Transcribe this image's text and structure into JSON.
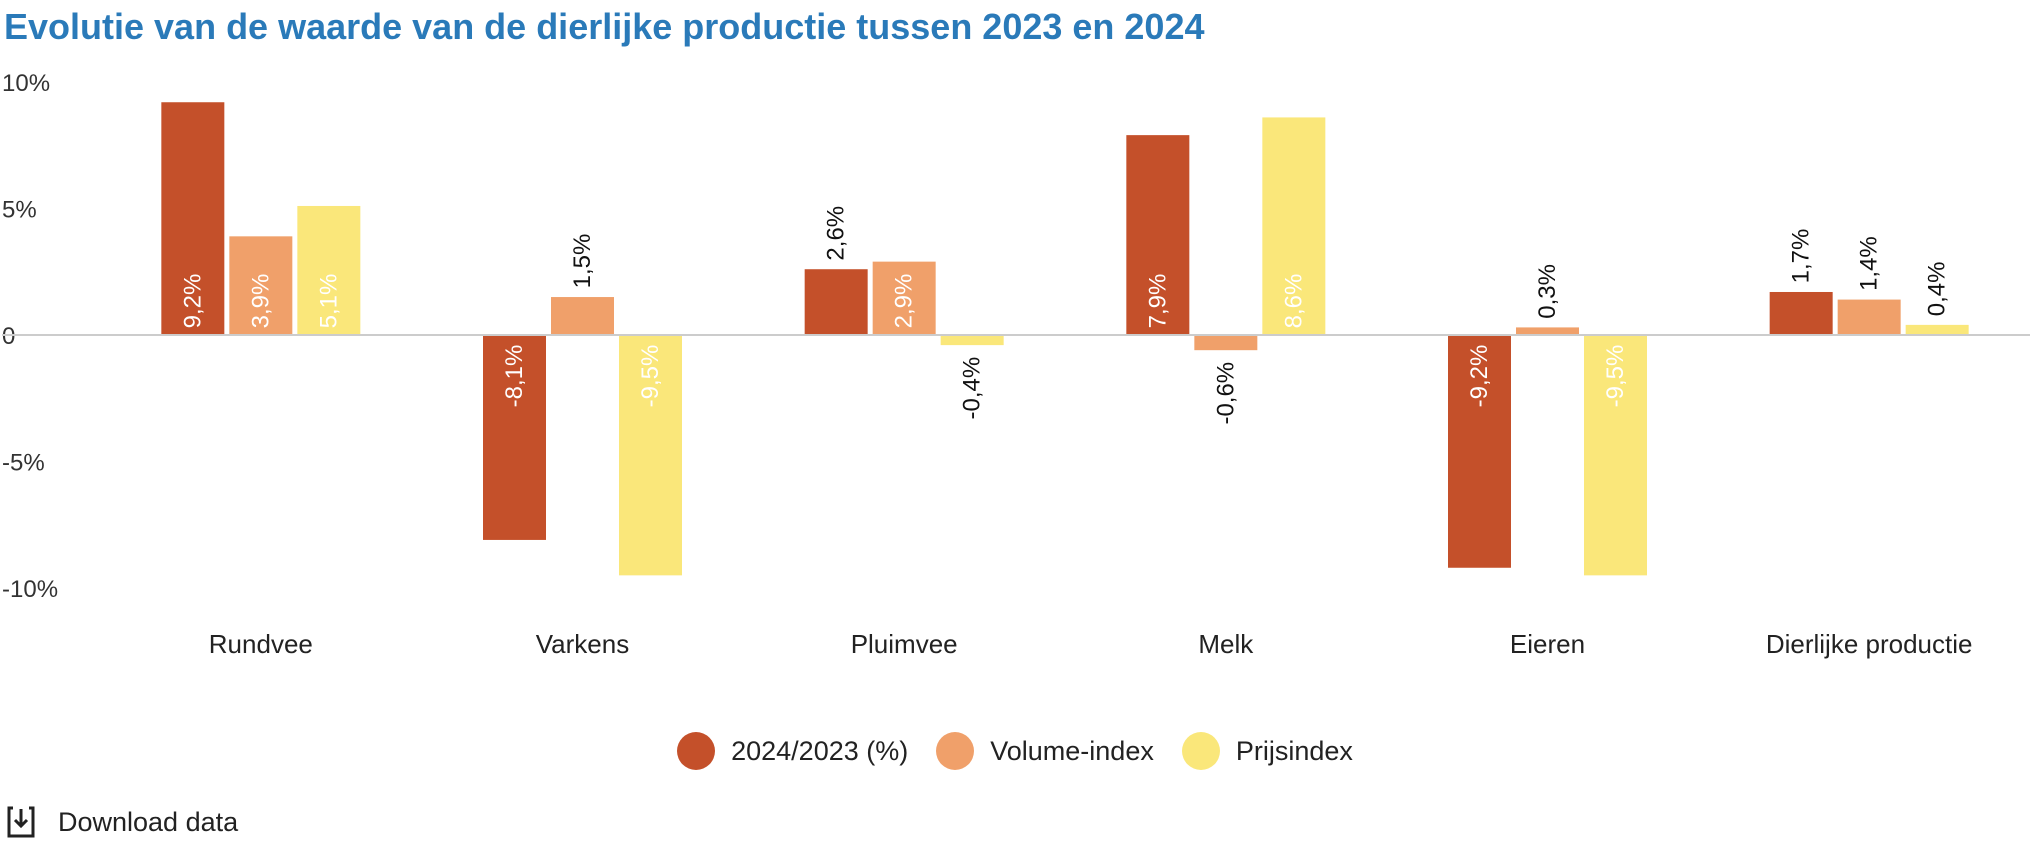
{
  "chart_data": {
    "type": "bar",
    "title": "Evolutie van de waarde van de dierlijke productie tussen 2023 en 2024",
    "categories": [
      "Rundvee",
      "Varkens",
      "Pluimvee",
      "Melk",
      "Eieren",
      "Dierlijke productie"
    ],
    "series": [
      {
        "name": "2024/2023 (%)",
        "color": "#c4502a",
        "values": [
          9.2,
          -8.1,
          2.6,
          7.9,
          -9.2,
          1.7
        ],
        "labels": [
          "9,2%",
          "-8,1%",
          "2,6%",
          "7,9%",
          "-9,2%",
          "1,7%"
        ]
      },
      {
        "name": "Volume-index",
        "color": "#f0a06a",
        "values": [
          3.9,
          1.5,
          2.9,
          -0.6,
          0.3,
          1.4
        ],
        "labels": [
          "3,9%",
          "1,5%",
          "2,9%",
          "-0,6%",
          "0,3%",
          "1,4%"
        ]
      },
      {
        "name": "Prijsindex",
        "color": "#fae77a",
        "values": [
          5.1,
          -9.5,
          -0.4,
          8.6,
          -9.5,
          0.4
        ],
        "labels": [
          "5,1%",
          "-9,5%",
          "-0,4%",
          "8,6%",
          "-9,5%",
          "0,4%"
        ]
      }
    ],
    "yticks": [
      {
        "value": 10,
        "label": "10%"
      },
      {
        "value": 5,
        "label": "5%"
      },
      {
        "value": 0,
        "label": "0"
      },
      {
        "value": -5,
        "label": "-5%"
      },
      {
        "value": -10,
        "label": "-10%"
      }
    ],
    "ylim": [
      -10,
      10
    ],
    "grid": false,
    "legend_position": "bottom"
  },
  "download": {
    "label": "Download data",
    "icon": "download-icon"
  }
}
